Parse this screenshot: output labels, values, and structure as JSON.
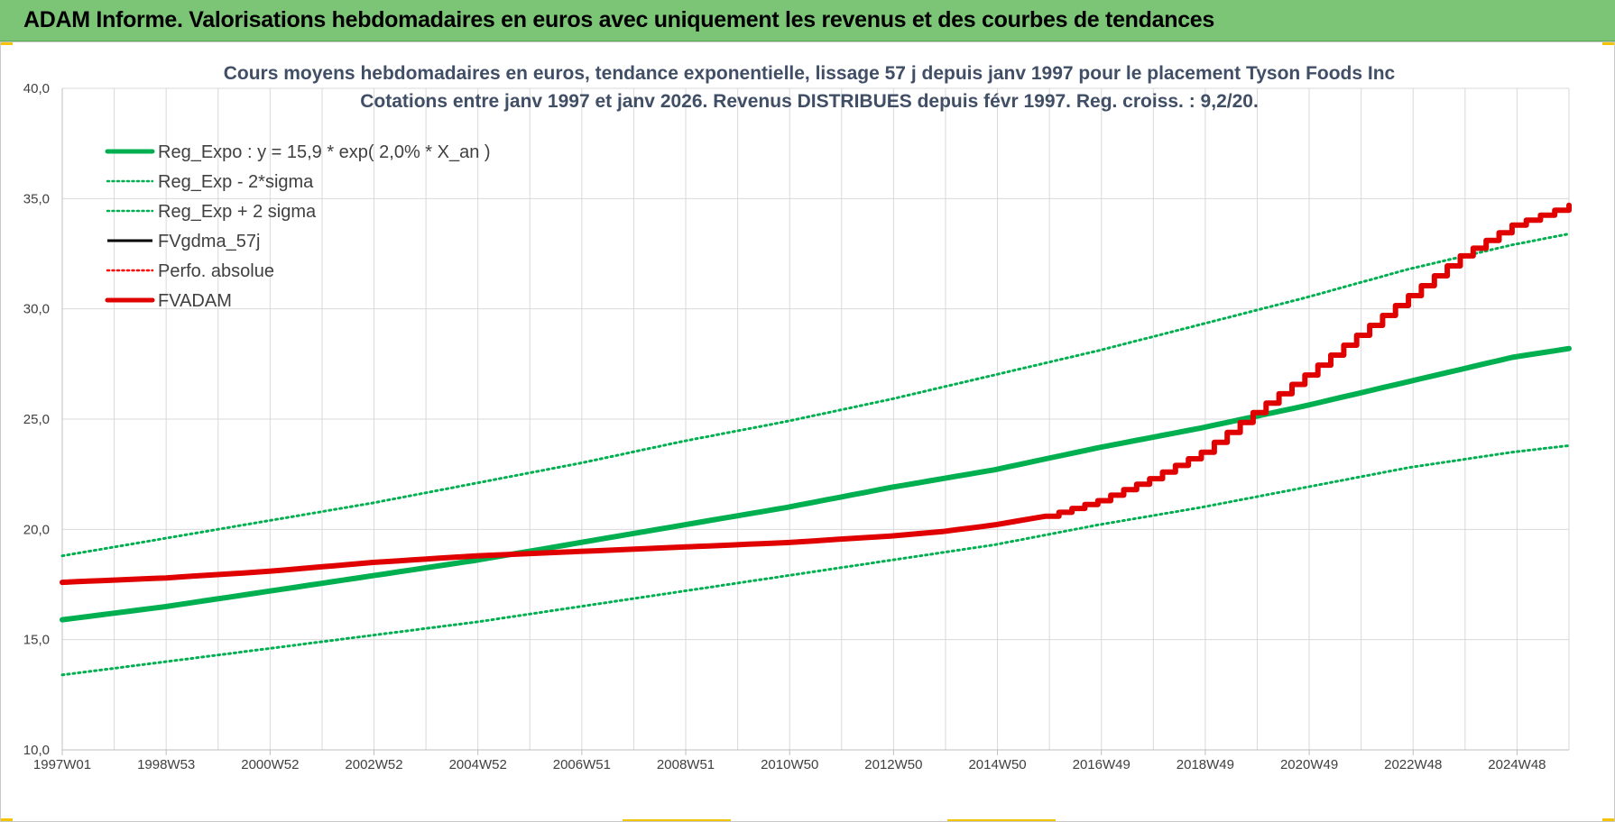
{
  "banner": {
    "title": "ADAM Informe. Valorisations hebdomadaires en euros avec uniquement les revenus et des courbes de tendances"
  },
  "colors": {
    "banner_bg": "#7cc576",
    "trend_green": "#00b050",
    "fvadam_red": "#e00000",
    "fvgdma_black": "#000000",
    "perfo_red": "#ff0000",
    "accent_yellow": "#f5c400"
  },
  "chart_data": {
    "type": "line",
    "title": [
      "Cours moyens hebdomadaires en euros, tendance exponentielle, lissage 57 j depuis janv 1997  pour le placement Tyson Foods Inc",
      "Cotations entre janv 1997 et janv 2026. Revenus DISTRIBUES depuis févr 1997. Reg. croiss. : 9,2/20."
    ],
    "x_ticks": [
      "1997W01",
      "1998W53",
      "2000W52",
      "2002W52",
      "2004W52",
      "2006W51",
      "2008W51",
      "2010W50",
      "2012W50",
      "2014W50",
      "2016W49",
      "2018W49",
      "2020W49",
      "2022W48",
      "2024W48"
    ],
    "x_range": [
      1997.0,
      2026.1
    ],
    "y_ticks": [
      "10,0",
      "15,0",
      "20,0",
      "25,0",
      "30,0",
      "35,0",
      "40,0"
    ],
    "ylim": [
      10,
      40
    ],
    "grid": true,
    "legend_position": "top-left",
    "legend": [
      {
        "label": "Reg_Expo : y = 15,9 * exp( 2,0% *  X_an )",
        "color": "#00b050",
        "style": "solid-thick"
      },
      {
        "label": "Reg_Exp - 2*sigma",
        "color": "#00b050",
        "style": "dotted"
      },
      {
        "label": "Reg_Exp + 2 sigma",
        "color": "#00b050",
        "style": "dotted"
      },
      {
        "label": "FVgdma_57j",
        "color": "#000000",
        "style": "solid"
      },
      {
        "label": "Perfo. absolue",
        "color": "#ff0000",
        "style": "dotted"
      },
      {
        "label": "FVADAM",
        "color": "#e00000",
        "style": "solid-thick"
      }
    ],
    "series": [
      {
        "name": "Reg_Expo : y = 15,9 * exp( 2,0% *  X_an )",
        "x": [
          1997.0,
          1999.0,
          2001.0,
          2003.0,
          2005.0,
          2007.0,
          2009.0,
          2011.0,
          2013.0,
          2015.0,
          2017.0,
          2019.0,
          2021.0,
          2023.0,
          2025.0,
          2026.1
        ],
        "y": [
          15.9,
          16.5,
          17.2,
          17.9,
          18.6,
          19.4,
          20.2,
          21.0,
          21.9,
          22.7,
          23.7,
          24.6,
          25.6,
          26.7,
          27.8,
          28.2
        ]
      },
      {
        "name": "Reg_Exp - 2*sigma",
        "x": [
          1997.0,
          1999.0,
          2001.0,
          2003.0,
          2005.0,
          2007.0,
          2009.0,
          2011.0,
          2013.0,
          2015.0,
          2017.0,
          2019.0,
          2021.0,
          2023.0,
          2025.0,
          2026.1
        ],
        "y": [
          13.4,
          14.0,
          14.6,
          15.2,
          15.8,
          16.5,
          17.2,
          17.9,
          18.6,
          19.3,
          20.2,
          21.0,
          21.9,
          22.8,
          23.5,
          23.8
        ]
      },
      {
        "name": "Reg_Exp + 2 sigma",
        "x": [
          1997.0,
          1999.0,
          2001.0,
          2003.0,
          2005.0,
          2007.0,
          2009.0,
          2011.0,
          2013.0,
          2015.0,
          2017.0,
          2019.0,
          2021.0,
          2023.0,
          2025.0,
          2026.1
        ],
        "y": [
          18.8,
          19.6,
          20.4,
          21.2,
          22.1,
          23.0,
          24.0,
          24.9,
          25.9,
          27.0,
          28.1,
          29.3,
          30.5,
          31.8,
          32.9,
          33.4
        ]
      },
      {
        "name": "FVADAM",
        "x": [
          1997.0,
          1999.0,
          2001.0,
          2003.0,
          2005.0,
          2007.0,
          2009.0,
          2011.0,
          2013.0,
          2014.0,
          2015.0,
          2016.0,
          2017.0,
          2018.0,
          2019.0,
          2020.0,
          2021.0,
          2022.0,
          2023.0,
          2024.0,
          2025.0,
          2026.1
        ],
        "y": [
          17.6,
          17.8,
          18.1,
          18.5,
          18.8,
          19.0,
          19.2,
          19.4,
          19.7,
          19.9,
          20.2,
          20.6,
          21.3,
          22.3,
          23.5,
          25.3,
          27.0,
          28.8,
          30.6,
          32.4,
          33.8,
          34.7
        ]
      }
    ]
  }
}
